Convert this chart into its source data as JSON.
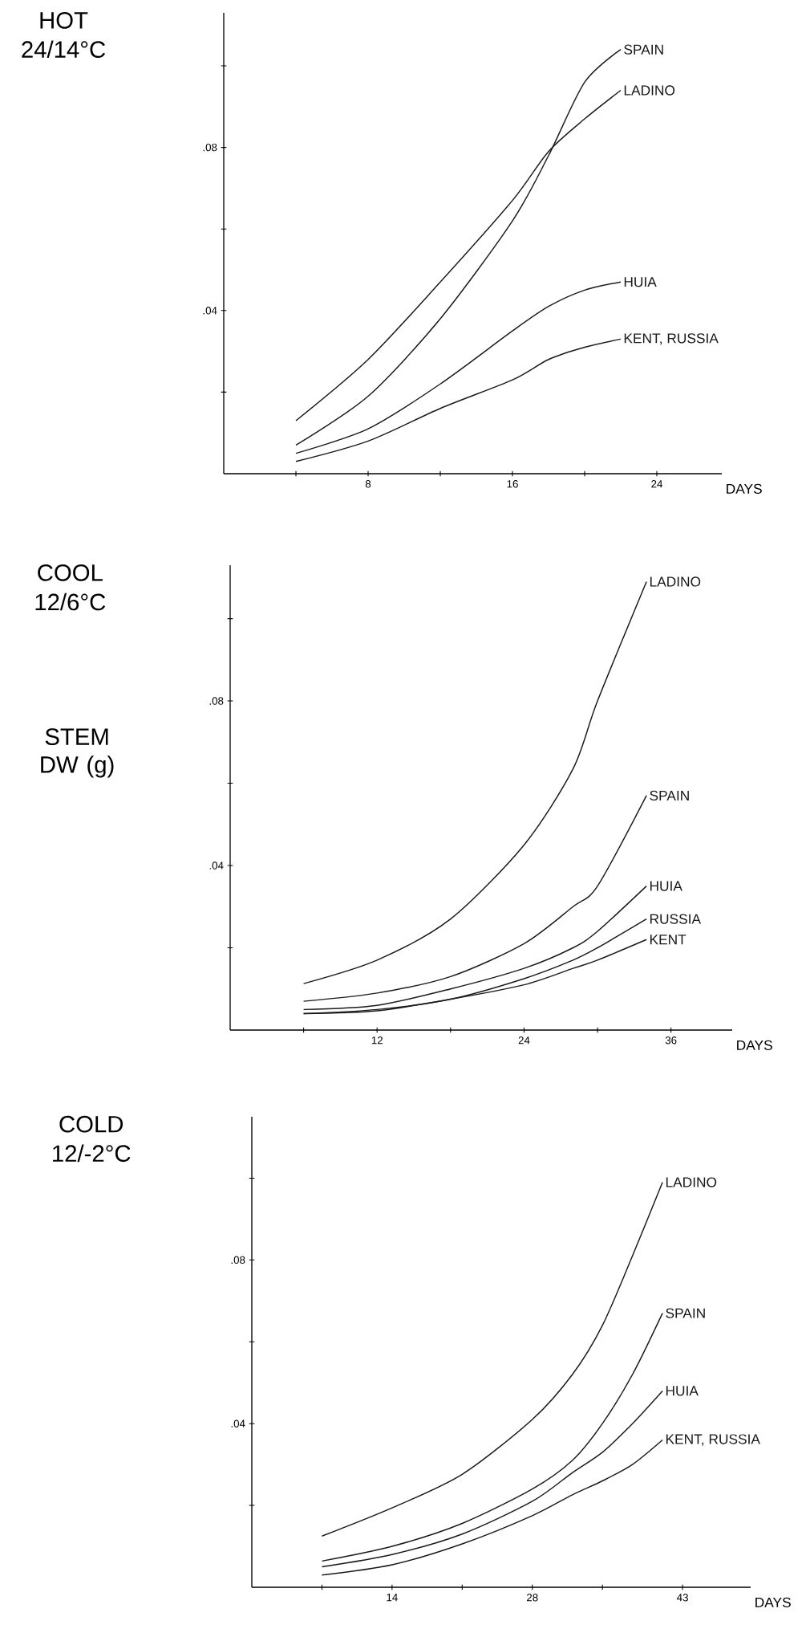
{
  "chart_data": [
    {
      "type": "line",
      "title": "HOT",
      "subtitle": "24/14°C",
      "xlabel": "DAYS",
      "x": [
        4,
        8,
        12,
        16,
        18,
        20,
        22
      ],
      "series": [
        {
          "name": "SPAIN",
          "color": "#1a1a1a",
          "values": [
            0.007,
            0.019,
            0.038,
            0.062,
            0.078,
            0.096,
            0.104
          ]
        },
        {
          "name": "LADINO",
          "color": "#1a1a1a",
          "values": [
            0.013,
            0.028,
            0.047,
            0.067,
            0.079,
            0.087,
            0.094
          ]
        },
        {
          "name": "HUIA",
          "color": "#1a1a1a",
          "values": [
            0.005,
            0.011,
            0.022,
            0.035,
            0.041,
            0.045,
            0.047
          ]
        },
        {
          "name": "KENT, RUSSIA",
          "color": "#1a1a1a",
          "values": [
            0.003,
            0.008,
            0.016,
            0.023,
            0.028,
            0.031,
            0.033
          ]
        }
      ],
      "xlim": [
        0,
        27.6
      ],
      "ylim": [
        0,
        0.113
      ],
      "xticks": [
        {
          "value": 4,
          "label": null
        },
        8,
        {
          "value": 12,
          "label": null
        },
        16,
        {
          "value": 20,
          "label": null
        },
        24
      ],
      "yticks": [
        {
          "value": 0.02,
          "label": null
        },
        {
          "value": 0.04,
          "label": ".04"
        },
        {
          "value": 0.06,
          "label": null
        },
        {
          "value": 0.08,
          "label": ".08"
        },
        {
          "value": 0.1,
          "label": null
        }
      ]
    },
    {
      "type": "line",
      "title": "COOL",
      "subtitle": "12/6°C",
      "xlabel": "DAYS",
      "ylabel": "STEM DW (g)",
      "x": [
        6,
        12,
        18,
        24,
        28,
        30,
        34
      ],
      "series": [
        {
          "name": "LADINO",
          "color": "#1a1a1a",
          "values": [
            0.0113,
            0.017,
            0.027,
            0.045,
            0.0635,
            0.08,
            0.109
          ]
        },
        {
          "name": "SPAIN",
          "color": "#1a1a1a",
          "values": [
            0.007,
            0.009,
            0.013,
            0.021,
            0.03,
            0.035,
            0.057
          ]
        },
        {
          "name": "HUIA",
          "color": "#1a1a1a",
          "values": [
            0.005,
            0.006,
            0.01,
            0.015,
            0.02,
            0.024,
            0.035
          ]
        },
        {
          "name": "RUSSIA",
          "color": "#1a1a1a",
          "values": [
            0.004,
            0.005,
            0.0075,
            0.0125,
            0.017,
            0.02,
            0.027
          ]
        },
        {
          "name": "KENT",
          "color": "#1a1a1a",
          "values": [
            0.004,
            0.0047,
            0.0075,
            0.011,
            0.015,
            0.017,
            0.022
          ]
        }
      ],
      "xlim": [
        0,
        41
      ],
      "ylim": [
        0,
        0.113
      ],
      "xticks": [
        {
          "value": 6,
          "label": null
        },
        12,
        {
          "value": 18,
          "label": null
        },
        24,
        {
          "value": 30,
          "label": null
        },
        36
      ],
      "yticks": [
        {
          "value": 0.02,
          "label": null
        },
        {
          "value": 0.04,
          "label": ".04"
        },
        {
          "value": 0.06,
          "label": null
        },
        {
          "value": 0.08,
          "label": ".08"
        },
        {
          "value": 0.1,
          "label": null
        }
      ]
    },
    {
      "type": "line",
      "title": "COLD",
      "subtitle": "12/-2°C",
      "xlabel": "DAYS",
      "x": [
        7,
        14,
        21,
        28,
        32,
        35,
        38,
        41
      ],
      "series": [
        {
          "name": "LADINO",
          "color": "#1a1a1a",
          "values": [
            0.0125,
            0.0194,
            0.0276,
            0.041,
            0.052,
            0.064,
            0.081,
            0.099
          ]
        },
        {
          "name": "SPAIN",
          "color": "#1a1a1a",
          "values": [
            0.0064,
            0.01,
            0.0156,
            0.024,
            0.031,
            0.04,
            0.052,
            0.067
          ]
        },
        {
          "name": "HUIA",
          "color": "#1a1a1a",
          "values": [
            0.005,
            0.008,
            0.013,
            0.021,
            0.028,
            0.033,
            0.04,
            0.048
          ]
        },
        {
          "name": "KENT, RUSSIA",
          "color": "#1a1a1a",
          "values": [
            0.003,
            0.0055,
            0.0106,
            0.0175,
            0.0226,
            0.026,
            0.03,
            0.036
          ]
        }
      ],
      "xlim": [
        0,
        49.8
      ],
      "ylim": [
        0,
        0.115
      ],
      "xticks": [
        {
          "value": 7,
          "label": null
        },
        14,
        {
          "value": 21,
          "label": null
        },
        28,
        {
          "value": 35,
          "label": null
        },
        43
      ],
      "yticks": [
        {
          "value": 0.02,
          "label": null
        },
        {
          "value": 0.04,
          "label": ".04"
        },
        {
          "value": 0.06,
          "label": null
        },
        {
          "value": 0.08,
          "label": ".08"
        },
        {
          "value": 0.1,
          "label": null
        }
      ]
    }
  ]
}
